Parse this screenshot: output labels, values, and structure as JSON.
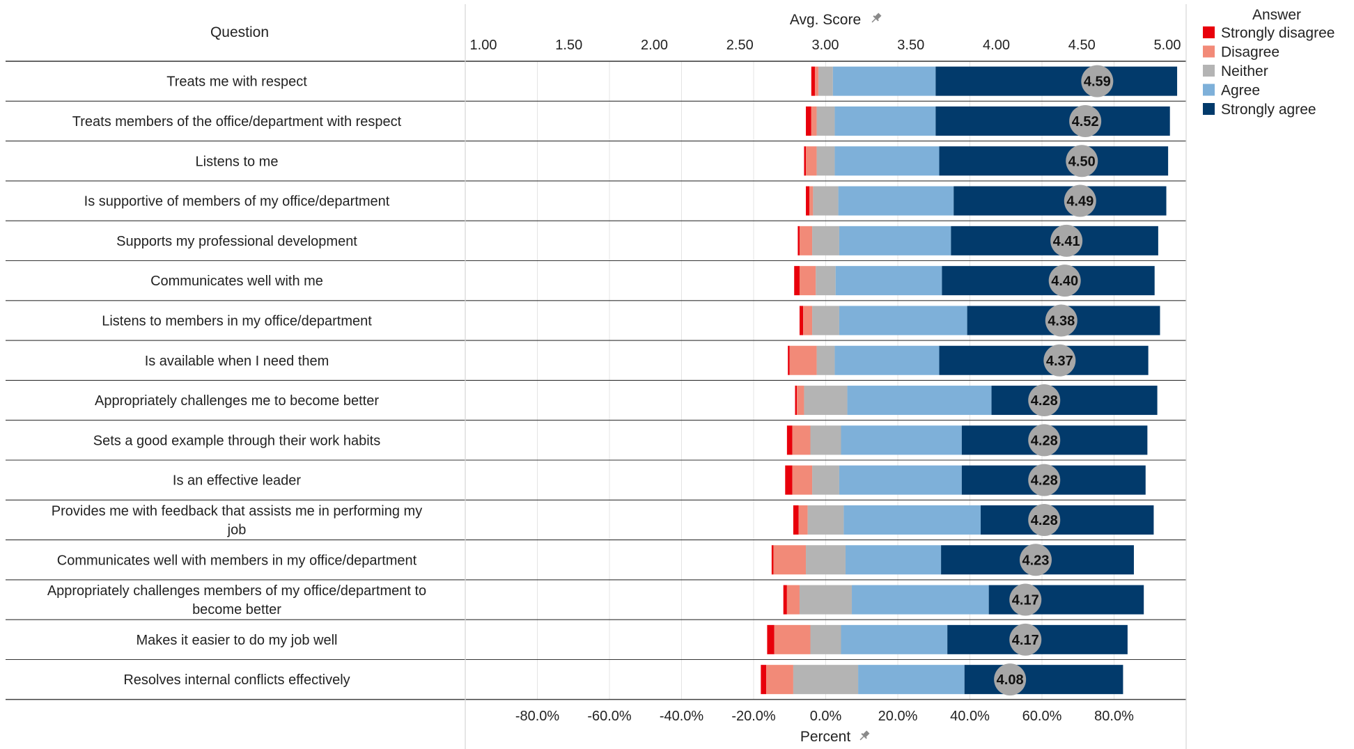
{
  "chart_data": {
    "type": "bar",
    "subtype": "diverging-stacked-bar-with-score-markers",
    "question_header": "Question",
    "top_axis": {
      "label": "Avg. Score",
      "pin_icon": "pin-icon",
      "range": [
        1,
        5
      ],
      "ticks": [
        "1.00",
        "1.50",
        "2.00",
        "2.50",
        "3.00",
        "3.50",
        "4.00",
        "4.50",
        "5.00"
      ]
    },
    "bottom_axis": {
      "label": "Percent",
      "pin_icon": "pin-icon",
      "range": [
        -100,
        100
      ],
      "ticks": [
        "-80.0%",
        "-60.0%",
        "-40.0%",
        "-20.0%",
        "0.0%",
        "20.0%",
        "40.0%",
        "60.0%",
        "80.0%"
      ],
      "tick_values": [
        -80,
        -60,
        -40,
        -20,
        0,
        20,
        40,
        60,
        80
      ]
    },
    "grid": true,
    "legend": {
      "title": "Answer",
      "placement": "top-right",
      "items": [
        {
          "label": "Strongly disagree",
          "color": "#e8000b"
        },
        {
          "label": "Disagree",
          "color": "#f28a78"
        },
        {
          "label": "Neither",
          "color": "#b4b4b4"
        },
        {
          "label": "Agree",
          "color": "#7eb0d9"
        },
        {
          "label": "Strongly agree",
          "color": "#023a6b"
        }
      ]
    },
    "score_marker_color": "#a7a7a7",
    "categories": [
      {
        "question": [
          "Treats me with respect"
        ],
        "score": "4.59",
        "sd": 1.0,
        "d": 1.0,
        "n": 4.0,
        "a": 28.5,
        "sa": 67.0
      },
      {
        "question": [
          "Treats members of the office/department with respect"
        ],
        "score": "4.52",
        "sd": 1.5,
        "d": 1.5,
        "n": 5.0,
        "a": 28.0,
        "sa": 65.0
      },
      {
        "question": [
          "Listens to me"
        ],
        "score": "4.50",
        "sd": 0.5,
        "d": 3.0,
        "n": 5.0,
        "a": 29.0,
        "sa": 63.5
      },
      {
        "question": [
          "Is supportive of members of my office/department"
        ],
        "score": "4.49",
        "sd": 1.0,
        "d": 1.0,
        "n": 7.0,
        "a": 32.0,
        "sa": 59.0
      },
      {
        "question": [
          "Supports my professional development"
        ],
        "score": "4.41",
        "sd": 0.5,
        "d": 3.5,
        "n": 7.5,
        "a": 31.0,
        "sa": 57.5
      },
      {
        "question": [
          "Communicates well with me"
        ],
        "score": "4.40",
        "sd": 1.5,
        "d": 4.5,
        "n": 5.5,
        "a": 29.5,
        "sa": 59.0
      },
      {
        "question": [
          "Listens to members in my office/department"
        ],
        "score": "4.38",
        "sd": 1.0,
        "d": 2.5,
        "n": 7.5,
        "a": 35.5,
        "sa": 53.5
      },
      {
        "question": [
          "Is available when I need them"
        ],
        "score": "4.37",
        "sd": 0.5,
        "d": 7.5,
        "n": 5.0,
        "a": 29.0,
        "sa": 58.0
      },
      {
        "question": [
          "Appropriately challenges me to become better"
        ],
        "score": "4.28",
        "sd": 0.5,
        "d": 2.0,
        "n": 12.0,
        "a": 40.0,
        "sa": 46.0
      },
      {
        "question": [
          "Sets a good example through their work habits"
        ],
        "score": "4.28",
        "sd": 1.5,
        "d": 5.0,
        "n": 8.5,
        "a": 33.5,
        "sa": 51.5
      },
      {
        "question": [
          "Is an effective leader"
        ],
        "score": "4.28",
        "sd": 2.0,
        "d": 5.5,
        "n": 7.5,
        "a": 34.0,
        "sa": 51.0
      },
      {
        "question": [
          "Provides me with feedback that assists me in performing my",
          "job"
        ],
        "score": "4.28",
        "sd": 1.5,
        "d": 2.5,
        "n": 10.0,
        "a": 38.0,
        "sa": 48.0
      },
      {
        "question": [
          "Communicates well with members in my office/department"
        ],
        "score": "4.23",
        "sd": 0.5,
        "d": 9.0,
        "n": 11.0,
        "a": 26.5,
        "sa": 53.5
      },
      {
        "question": [
          "Appropriately challenges members of my office/department to",
          "become better"
        ],
        "score": "4.17",
        "sd": 1.0,
        "d": 3.5,
        "n": 14.5,
        "a": 38.0,
        "sa": 43.0
      },
      {
        "question": [
          "Makes it easier to do my job well"
        ],
        "score": "4.17",
        "sd": 2.0,
        "d": 10.0,
        "n": 8.5,
        "a": 29.5,
        "sa": 50.0
      },
      {
        "question": [
          "Resolves internal conflicts effectively"
        ],
        "score": "4.08",
        "sd": 1.5,
        "d": 7.5,
        "n": 18.0,
        "a": 29.5,
        "sa": 44.0
      }
    ]
  }
}
